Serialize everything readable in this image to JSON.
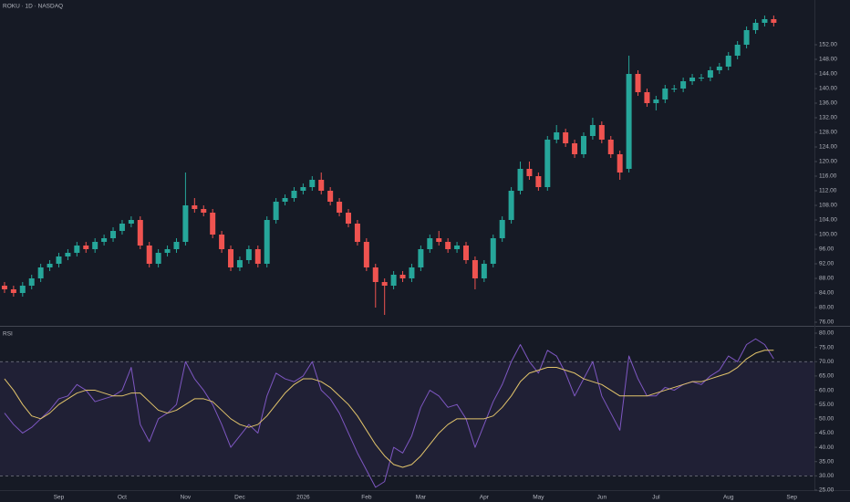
{
  "chart_data": [
    {
      "type": "candlestick",
      "title": "ROKU · 1D · NASDAQ",
      "categories": [
        null,
        null,
        null,
        null,
        null,
        null,
        "Sep",
        null,
        null,
        null,
        null,
        null,
        null,
        "Oct",
        null,
        null,
        null,
        null,
        null,
        null,
        "Nov",
        null,
        null,
        null,
        null,
        null,
        "Dec",
        null,
        null,
        null,
        null,
        null,
        null,
        "2026",
        null,
        null,
        null,
        null,
        null,
        null,
        "Feb",
        null,
        null,
        null,
        null,
        null,
        "Mar",
        null,
        null,
        null,
        null,
        null,
        null,
        "Apr",
        null,
        null,
        null,
        null,
        null,
        "May",
        null,
        null,
        null,
        null,
        null,
        null,
        "Jun",
        null,
        null,
        null,
        null,
        null,
        "Jul",
        null,
        null,
        null,
        null,
        null,
        null,
        null,
        "Aug",
        null,
        null,
        null,
        null,
        null,
        null,
        "Sep",
        null,
        null
      ],
      "series": [
        {
          "up_color": "#26a69a",
          "down_color": "#ef5350",
          "open": [
            86,
            85,
            84,
            86,
            88,
            91,
            92,
            94,
            95,
            97,
            96,
            98,
            99,
            101,
            103,
            104,
            97,
            92,
            95,
            96,
            98,
            108,
            107,
            106,
            100,
            96,
            91,
            93,
            96,
            92,
            104,
            109,
            110,
            112,
            113,
            115,
            112,
            109,
            106,
            103,
            98,
            91,
            87,
            86,
            89,
            88,
            91,
            96,
            99,
            98,
            96,
            97,
            93,
            88,
            92,
            99,
            104,
            112,
            118,
            116,
            113,
            126,
            128,
            125,
            122,
            127,
            130,
            126,
            122,
            118,
            144,
            139,
            136,
            137,
            140,
            140,
            142,
            143,
            143,
            145,
            146,
            149,
            152,
            156,
            158,
            159,
            null,
            null,
            null,
            null
          ],
          "high": [
            87,
            86,
            87,
            89,
            92,
            93,
            95,
            96,
            98,
            98,
            99,
            100,
            102,
            104,
            105,
            105,
            98,
            96,
            97,
            99,
            117,
            110,
            108,
            107,
            101,
            97,
            94,
            97,
            97,
            105,
            110,
            111,
            113,
            114,
            116,
            117,
            113,
            110,
            107,
            104,
            99,
            92,
            88,
            90,
            90,
            92,
            97,
            100,
            101,
            99,
            98,
            98,
            94,
            93,
            100,
            105,
            113,
            120,
            120,
            117,
            127,
            130,
            129,
            126,
            128,
            132,
            131,
            127,
            123,
            149,
            145,
            140,
            138,
            141,
            141,
            143,
            144,
            144,
            146,
            147,
            150,
            153,
            157,
            159,
            160,
            160,
            null,
            null,
            null,
            null
          ],
          "low": [
            84,
            83,
            83,
            85,
            87,
            90,
            91,
            93,
            94,
            95,
            95,
            97,
            98,
            100,
            102,
            96,
            91,
            91,
            94,
            95,
            97,
            106,
            105,
            99,
            95,
            90,
            90,
            92,
            91,
            91,
            103,
            108,
            109,
            111,
            112,
            111,
            108,
            105,
            102,
            97,
            90,
            80,
            78,
            85,
            87,
            87,
            90,
            95,
            97,
            95,
            95,
            92,
            85,
            87,
            91,
            98,
            103,
            111,
            115,
            112,
            112,
            125,
            124,
            121,
            121,
            126,
            125,
            121,
            115,
            117,
            138,
            135,
            134,
            136,
            139,
            139,
            141,
            142,
            142,
            144,
            145,
            148,
            151,
            155,
            157,
            157,
            null,
            null,
            null,
            null
          ],
          "close": [
            85,
            84,
            86,
            88,
            91,
            92,
            94,
            95,
            97,
            96,
            98,
            99,
            101,
            103,
            104,
            97,
            92,
            95,
            96,
            98,
            108,
            107,
            106,
            100,
            96,
            91,
            93,
            96,
            92,
            104,
            109,
            110,
            112,
            113,
            115,
            112,
            109,
            106,
            103,
            98,
            91,
            87,
            86,
            89,
            88,
            91,
            96,
            99,
            98,
            96,
            97,
            93,
            88,
            92,
            99,
            104,
            112,
            118,
            116,
            113,
            126,
            128,
            125,
            122,
            127,
            130,
            126,
            122,
            117,
            144,
            139,
            136,
            137,
            140,
            140,
            142,
            143,
            143,
            145,
            146,
            149,
            152,
            156,
            158,
            159,
            158,
            null,
            null,
            null,
            null
          ]
        }
      ],
      "ylim": [
        75,
        164.25
      ],
      "yticks": [
        {
          "value": 76,
          "label": "76.00"
        },
        {
          "value": 80,
          "label": "80.00"
        },
        {
          "value": 84,
          "label": "84.00"
        },
        {
          "value": 88,
          "label": "88.00"
        },
        {
          "value": 92,
          "label": "92.00"
        },
        {
          "value": 96,
          "label": "96.00"
        },
        {
          "value": 100,
          "label": "100.00"
        },
        {
          "value": 104,
          "label": "104.00"
        },
        {
          "value": 108,
          "label": "108.00"
        },
        {
          "value": 112,
          "label": "112.00"
        },
        {
          "value": 116,
          "label": "116.00"
        },
        {
          "value": 120,
          "label": "120.00"
        },
        {
          "value": 124,
          "label": "124.00"
        },
        {
          "value": 128,
          "label": "128.00"
        },
        {
          "value": 132,
          "label": "132.00"
        },
        {
          "value": 136,
          "label": "136.00"
        },
        {
          "value": 140,
          "label": "140.00"
        },
        {
          "value": 144,
          "label": "144.00"
        },
        {
          "value": 148,
          "label": "148.00"
        },
        {
          "value": 152,
          "label": "152.00"
        }
      ]
    },
    {
      "type": "line",
      "title": "RSI",
      "series": [
        {
          "color": "#7e57c2",
          "values": [
            52,
            48,
            45,
            47,
            50,
            53,
            57,
            58,
            62,
            60,
            56,
            57,
            58,
            60,
            68,
            48,
            42,
            50,
            52,
            55,
            70,
            64,
            60,
            55,
            48,
            40,
            44,
            48,
            45,
            58,
            66,
            64,
            63,
            65,
            70,
            60,
            57,
            52,
            45,
            38,
            32,
            26,
            28,
            40,
            38,
            44,
            54,
            60,
            58,
            54,
            55,
            50,
            40,
            48,
            56,
            62,
            70,
            76,
            70,
            66,
            74,
            72,
            66,
            58,
            64,
            70,
            58,
            52,
            46,
            72,
            64,
            58,
            58,
            61,
            60,
            62,
            63,
            62,
            65,
            67,
            72,
            70,
            76,
            78,
            76,
            71,
            null,
            null,
            null,
            null
          ]
        },
        {
          "color": "#e2c46b",
          "values": [
            64,
            60,
            55,
            51,
            50,
            52,
            55,
            57,
            59,
            60,
            60,
            59,
            58,
            58,
            59,
            59,
            56,
            53,
            52,
            53,
            55,
            57,
            57,
            56,
            53,
            50,
            48,
            47,
            48,
            51,
            55,
            59,
            62,
            64,
            64,
            63,
            61,
            58,
            55,
            51,
            46,
            41,
            37,
            34,
            33,
            34,
            37,
            41,
            45,
            48,
            50,
            50,
            50,
            50,
            51,
            54,
            58,
            63,
            66,
            67,
            68,
            68,
            67,
            66,
            64,
            63,
            62,
            60,
            58,
            58,
            58,
            58,
            59,
            60,
            61,
            62,
            63,
            63,
            64,
            65,
            66,
            68,
            71,
            73,
            74,
            74,
            null,
            null,
            null,
            null
          ]
        }
      ],
      "band": [
        30,
        70
      ],
      "band_color": "#7e57c2",
      "ylim": [
        25,
        81.6
      ],
      "yticks": [
        {
          "value": 25,
          "label": "25.00"
        },
        {
          "value": 30,
          "label": "30.00"
        },
        {
          "value": 35,
          "label": "35.00"
        },
        {
          "value": 40,
          "label": "40.00"
        },
        {
          "value": 45,
          "label": "45.00"
        },
        {
          "value": 50,
          "label": "50.00"
        },
        {
          "value": 55,
          "label": "55.00"
        },
        {
          "value": 60,
          "label": "60.00"
        },
        {
          "value": 65,
          "label": "65.00"
        },
        {
          "value": 70,
          "label": "70.00"
        },
        {
          "value": 75,
          "label": "75.00"
        },
        {
          "value": 80,
          "label": "80.00"
        }
      ]
    }
  ]
}
